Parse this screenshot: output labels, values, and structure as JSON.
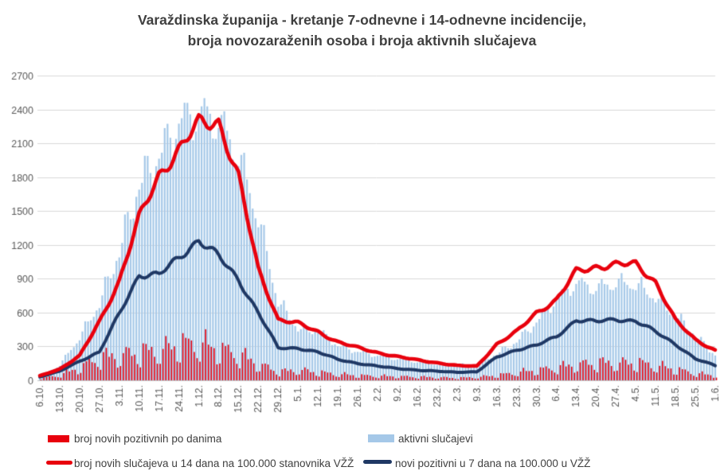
{
  "title": {
    "line1": "Varaždinska županija - kretanje 7-odnevne i 14-odnevne incidencije,",
    "line2": "broja novozaraženih osoba i broja aktivnih slučajeva"
  },
  "colors": {
    "red": "#e8000d",
    "navy": "#1f3864",
    "lightblue": "#a5c8e8",
    "grid": "#d9d9d9",
    "axis_text": "#595959",
    "title_text": "#3f3f3f"
  },
  "chart_data": {
    "type": "bar",
    "subtype": "combo-daily-bars-with-lines",
    "x_tick_labels": [
      "6.10.",
      "13.10.",
      "20.10.",
      "27.10.",
      "3.11.",
      "10.11.",
      "17.11.",
      "24.11.",
      "1.12.",
      "8.12.",
      "15.12.",
      "22.12.",
      "29.12.",
      "5.1.",
      "12.1.",
      "19.1.",
      "26.1.",
      "2.2.",
      "9.2.",
      "16.2.",
      "23.2.",
      "2.3.",
      "9.3.",
      "16.3.",
      "23.3.",
      "30.3.",
      "6.4.",
      "13.4.",
      "20.4.",
      "27.4.",
      "4.5.",
      "11.5.",
      "18.5.",
      "25.5.",
      "1.6."
    ],
    "y_axis": {
      "min": 0,
      "max": 2700,
      "step": 300,
      "tick_labels": [
        "0",
        "300",
        "600",
        "900",
        "1200",
        "1500",
        "1800",
        "2100",
        "2400",
        "2700"
      ]
    },
    "grid": true,
    "legend_position": "bottom",
    "sampling_note": "daily data; series values below are read at the weekly x-axis tick marks",
    "series": [
      {
        "name": "broj novih pozitivnih po danima",
        "type": "bar",
        "color": "#e8000d",
        "weekly_values": [
          15,
          45,
          110,
          190,
          205,
          235,
          245,
          300,
          300,
          260,
          210,
          130,
          70,
          85,
          65,
          50,
          40,
          35,
          32,
          28,
          24,
          20,
          26,
          42,
          65,
          85,
          105,
          130,
          145,
          140,
          145,
          120,
          90,
          55,
          40
        ]
      },
      {
        "name": "aktivni slučajevi",
        "type": "bar",
        "color": "#a5c8e8",
        "weekly_values": [
          30,
          135,
          380,
          685,
          1150,
          1750,
          2000,
          2300,
          2380,
          2310,
          2000,
          1450,
          700,
          460,
          440,
          310,
          255,
          220,
          190,
          165,
          145,
          130,
          145,
          235,
          345,
          520,
          720,
          870,
          820,
          870,
          855,
          740,
          580,
          400,
          225
        ]
      },
      {
        "name": "broj novih slučajeva u 14 dana na 100.000 stanovnika VŽŽ",
        "type": "line",
        "color": "#e8000d",
        "weekly_values": [
          40,
          100,
          215,
          520,
          880,
          1440,
          1820,
          2040,
          2280,
          2290,
          1800,
          980,
          540,
          505,
          430,
          340,
          290,
          245,
          210,
          180,
          155,
          130,
          125,
          320,
          430,
          600,
          710,
          965,
          1005,
          1025,
          1030,
          870,
          530,
          360,
          265
        ]
      },
      {
        "name": "novi pozitivni u 7 dana na 100.000 u VŽŽ",
        "type": "line",
        "color": "#1f3864",
        "weekly_values": [
          30,
          80,
          170,
          250,
          590,
          935,
          935,
          1085,
          1245,
          1100,
          890,
          600,
          285,
          285,
          250,
          185,
          150,
          125,
          105,
          90,
          80,
          72,
          75,
          205,
          270,
          310,
          385,
          535,
          520,
          540,
          525,
          430,
          320,
          190,
          130
        ]
      }
    ],
    "annotations": {
      "wave1_peak_active_cases": 2640,
      "wave1_peak_incidence14": 2320,
      "wave1_peak_incidence7": 1250,
      "wave1_peak_daily_new": 440,
      "wave2_peak_incidence14": 1040,
      "wave2_peak_incidence7": 555,
      "wave2_peak_active_cases": 900
    }
  },
  "legend": {
    "items": [
      {
        "label": "broj novih pozitivnih po danima",
        "swatch": "red-bar"
      },
      {
        "label": "aktivni slučajevi",
        "swatch": "lightblue-bar"
      },
      {
        "label": "broj novih slučajeva u 14 dana na 100.000 stanovnika VŽŽ",
        "swatch": "red-line"
      },
      {
        "label": "novi pozitivni u 7 dana na 100.000 u VŽŽ",
        "swatch": "navy-line"
      }
    ]
  }
}
